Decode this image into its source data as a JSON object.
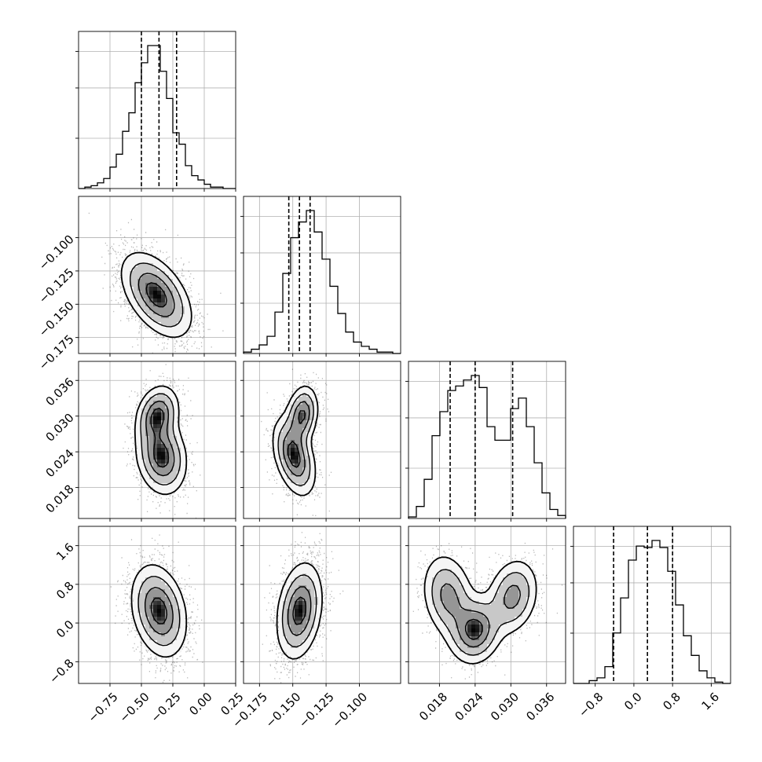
{
  "chart_data": {
    "type": "corner",
    "grid": true,
    "params": [
      {
        "name": "",
        "range": [
          -1.0,
          0.25
        ],
        "ticks": [
          -0.75,
          -0.5,
          -0.25,
          0.0,
          0.25
        ],
        "tick_labels": [
          "−0.75",
          "−0.50",
          "−0.25",
          "0.00",
          "0.25"
        ],
        "quantiles": [
          -0.5,
          -0.36,
          -0.22
        ],
        "hist": [
          0.0,
          0.01,
          0.02,
          0.04,
          0.07,
          0.15,
          0.24,
          0.4,
          0.53,
          0.74,
          0.88,
          1.0,
          1.0,
          0.82,
          0.63,
          0.39,
          0.31,
          0.16,
          0.09,
          0.06,
          0.03,
          0.01,
          0.01,
          0.0,
          0.0
        ]
      },
      {
        "name": "",
        "range": [
          -0.187,
          -0.069
        ],
        "ticks": [
          -0.175,
          -0.15,
          -0.125,
          -0.1
        ],
        "tick_labels": [
          "−0.175",
          "−0.150",
          "−0.125",
          "−0.100"
        ],
        "quantiles": [
          -0.153,
          -0.145,
          -0.137
        ],
        "hist": [
          0.01,
          0.03,
          0.06,
          0.12,
          0.29,
          0.56,
          0.81,
          0.92,
          1.0,
          0.85,
          0.66,
          0.47,
          0.28,
          0.15,
          0.08,
          0.05,
          0.03,
          0.01,
          0.01,
          0.0
        ]
      },
      {
        "name": "",
        "range": [
          0.0128,
          0.0392
        ],
        "ticks": [
          0.018,
          0.024,
          0.03,
          0.036
        ],
        "tick_labels": [
          "0.018",
          "0.024",
          "0.030",
          "0.036"
        ],
        "quantiles": [
          0.0198,
          0.024,
          0.0303
        ],
        "hist": [
          0.01,
          0.08,
          0.26,
          0.55,
          0.71,
          0.85,
          0.88,
          0.92,
          0.95,
          0.87,
          0.61,
          0.52,
          0.52,
          0.73,
          0.8,
          0.61,
          0.37,
          0.17,
          0.06,
          0.02
        ]
      },
      {
        "name": "",
        "range": [
          -1.25,
          2.0
        ],
        "ticks": [
          -0.8,
          0.0,
          0.8,
          1.6
        ],
        "tick_labels": [
          "−0.8",
          "0.0",
          "0.8",
          "1.6"
        ],
        "quantiles": [
          -0.42,
          0.28,
          0.8
        ],
        "hist": [
          0.0,
          0.0,
          0.02,
          0.04,
          0.12,
          0.36,
          0.61,
          0.88,
          0.98,
          0.97,
          1.02,
          0.97,
          0.8,
          0.56,
          0.34,
          0.2,
          0.09,
          0.04,
          0.01,
          0.0
        ]
      }
    ],
    "pairs": [
      {
        "x": 0,
        "y": 1,
        "blobs": [
          {
            "cx": -0.38,
            "cy": -0.143,
            "sx": 0.14,
            "sy": 0.016,
            "rho": -0.5,
            "w": 1.0
          }
        ]
      },
      {
        "x": 0,
        "y": 2,
        "blobs": [
          {
            "cx": -0.37,
            "cy": 0.0302,
            "sx": 0.085,
            "sy": 0.0025,
            "rho": 0.2,
            "w": 0.5
          },
          {
            "cx": -0.34,
            "cy": 0.0232,
            "sx": 0.1,
            "sy": 0.0032,
            "rho": -0.15,
            "w": 0.55
          }
        ]
      },
      {
        "x": 1,
        "y": 2,
        "blobs": [
          {
            "cx": -0.143,
            "cy": 0.0302,
            "sx": 0.006,
            "sy": 0.0025,
            "rho": 0.2,
            "w": 0.5
          },
          {
            "cx": -0.149,
            "cy": 0.0232,
            "sx": 0.008,
            "sy": 0.0033,
            "rho": -0.4,
            "w": 0.55
          }
        ]
      },
      {
        "x": 0,
        "y": 3,
        "blobs": [
          {
            "cx": -0.36,
            "cy": 0.25,
            "sx": 0.11,
            "sy": 0.48,
            "rho": -0.25,
            "w": 1.0
          }
        ]
      },
      {
        "x": 1,
        "y": 3,
        "blobs": [
          {
            "cx": -0.145,
            "cy": 0.25,
            "sx": 0.0085,
            "sy": 0.5,
            "rho": 0.25,
            "w": 1.0
          }
        ]
      },
      {
        "x": 2,
        "y": 3,
        "blobs": [
          {
            "cx": 0.0195,
            "cy": 0.55,
            "sx": 0.0022,
            "sy": 0.45,
            "rho": -0.2,
            "w": 0.45
          },
          {
            "cx": 0.024,
            "cy": -0.15,
            "sx": 0.0022,
            "sy": 0.35,
            "rho": 0.1,
            "w": 0.6
          },
          {
            "cx": 0.0303,
            "cy": 0.55,
            "sx": 0.0022,
            "sy": 0.4,
            "rho": 0.2,
            "w": 0.45
          }
        ]
      }
    ]
  },
  "colors": {
    "grid": "#b0b0b0",
    "line": "#000000",
    "points": "#000000"
  }
}
